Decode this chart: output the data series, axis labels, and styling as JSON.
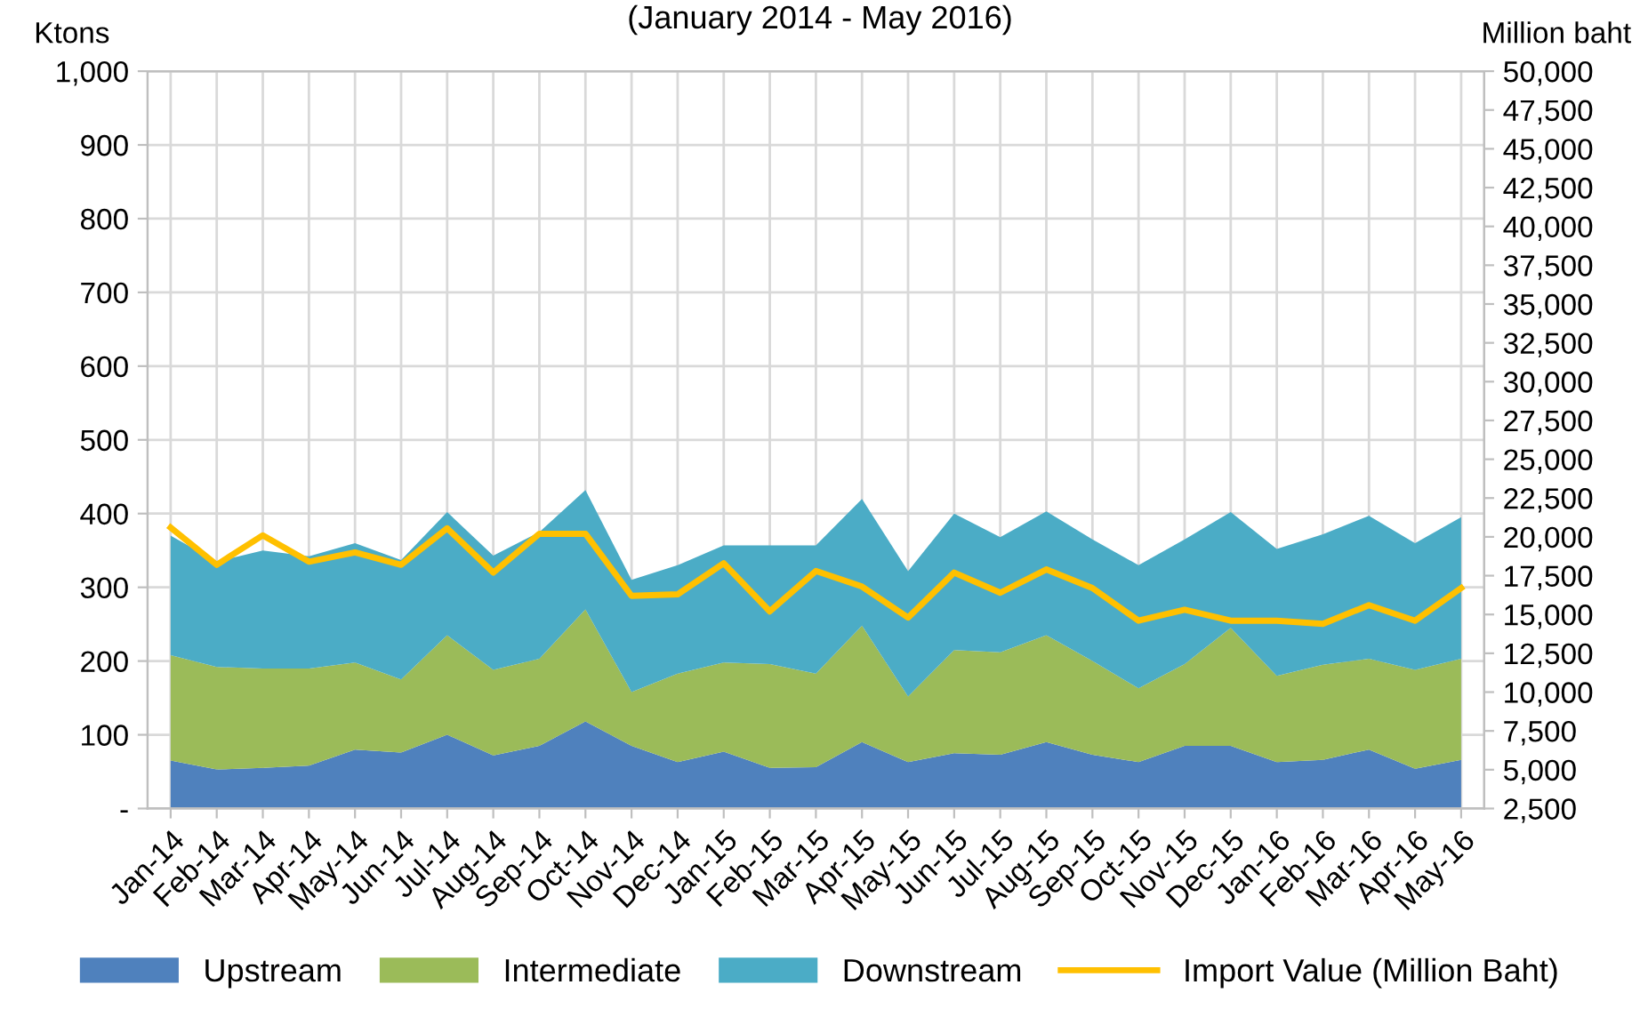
{
  "chart_data": {
    "type": "area",
    "stacked": true,
    "subtitle": "(January 2014 - May 2016)",
    "ylabel": "Ktons",
    "y2label": "Million baht",
    "categories": [
      "Jan-14",
      "Feb-14",
      "Mar-14",
      "Apr-14",
      "May-14",
      "Jun-14",
      "Jul-14",
      "Aug-14",
      "Sep-14",
      "Oct-14",
      "Nov-14",
      "Dec-14",
      "Jan-15",
      "Feb-15",
      "Mar-15",
      "Apr-15",
      "May-15",
      "Jun-15",
      "Jul-15",
      "Aug-15",
      "Sep-15",
      "Oct-15",
      "Nov-15",
      "Dec-15",
      "Jan-16",
      "Feb-16",
      "Mar-16",
      "Apr-16",
      "May-16"
    ],
    "series": [
      {
        "name": "Upstream",
        "color": "#4f81bd",
        "values": [
          65,
          53,
          55,
          58,
          80,
          76,
          100,
          72,
          85,
          118,
          85,
          63,
          77,
          55,
          56,
          90,
          63,
          75,
          73,
          90,
          73,
          63,
          85,
          85,
          63,
          66,
          80,
          54,
          66
        ]
      },
      {
        "name": "Intermediate",
        "color": "#9bbb59",
        "values": [
          143,
          139,
          135,
          132,
          118,
          99,
          135,
          116,
          118,
          152,
          73,
          120,
          121,
          141,
          127,
          158,
          89,
          140,
          139,
          145,
          127,
          100,
          111,
          160,
          117,
          129,
          123,
          134,
          137
        ]
      },
      {
        "name": "Downstream",
        "color": "#4bacc6",
        "values": [
          162,
          143,
          160,
          152,
          162,
          162,
          167,
          155,
          172,
          162,
          152,
          147,
          159,
          161,
          174,
          172,
          170,
          185,
          156,
          168,
          165,
          167,
          169,
          157,
          172,
          177,
          194,
          172,
          192
        ]
      },
      {
        "name": "Import Value (Million Baht)",
        "type": "line",
        "axis": "y2",
        "color": "#ffc000",
        "values": [
          20600,
          18200,
          20100,
          18400,
          19000,
          18200,
          20550,
          17700,
          20200,
          20200,
          16200,
          16300,
          18300,
          15200,
          17800,
          16800,
          14800,
          17700,
          16400,
          17900,
          16700,
          14600,
          15300,
          14600,
          14600,
          14400,
          15600,
          14600,
          16700
        ]
      }
    ],
    "ylim": [
      0,
      1000
    ],
    "yticks": [
      {
        "value": 0,
        "label": "-"
      },
      {
        "value": 100,
        "label": "100"
      },
      {
        "value": 200,
        "label": "200"
      },
      {
        "value": 300,
        "label": "300"
      },
      {
        "value": 400,
        "label": "400"
      },
      {
        "value": 500,
        "label": "500"
      },
      {
        "value": 600,
        "label": "600"
      },
      {
        "value": 700,
        "label": "700"
      },
      {
        "value": 800,
        "label": "800"
      },
      {
        "value": 900,
        "label": "900"
      },
      {
        "value": 1000,
        "label": "1,000"
      }
    ],
    "y2lim": [
      2500,
      50000
    ],
    "y2ticks": [
      {
        "value": 2500,
        "label": "2,500"
      },
      {
        "value": 5000,
        "label": "5,000"
      },
      {
        "value": 7500,
        "label": "7,500"
      },
      {
        "value": 10000,
        "label": "10,000"
      },
      {
        "value": 12500,
        "label": "12,500"
      },
      {
        "value": 15000,
        "label": "15,000"
      },
      {
        "value": 17500,
        "label": "17,500"
      },
      {
        "value": 20000,
        "label": "20,000"
      },
      {
        "value": 22500,
        "label": "22,500"
      },
      {
        "value": 25000,
        "label": "25,000"
      },
      {
        "value": 27500,
        "label": "27,500"
      },
      {
        "value": 30000,
        "label": "30,000"
      },
      {
        "value": 32500,
        "label": "32,500"
      },
      {
        "value": 35000,
        "label": "35,000"
      },
      {
        "value": 37500,
        "label": "37,500"
      },
      {
        "value": 40000,
        "label": "40,000"
      },
      {
        "value": 42500,
        "label": "42,500"
      },
      {
        "value": 45000,
        "label": "45,000"
      },
      {
        "value": 47500,
        "label": "47,500"
      },
      {
        "value": 50000,
        "label": "50,000"
      }
    ],
    "grid": true,
    "legend": "bottom",
    "line_style": "solid",
    "marker": "none"
  }
}
